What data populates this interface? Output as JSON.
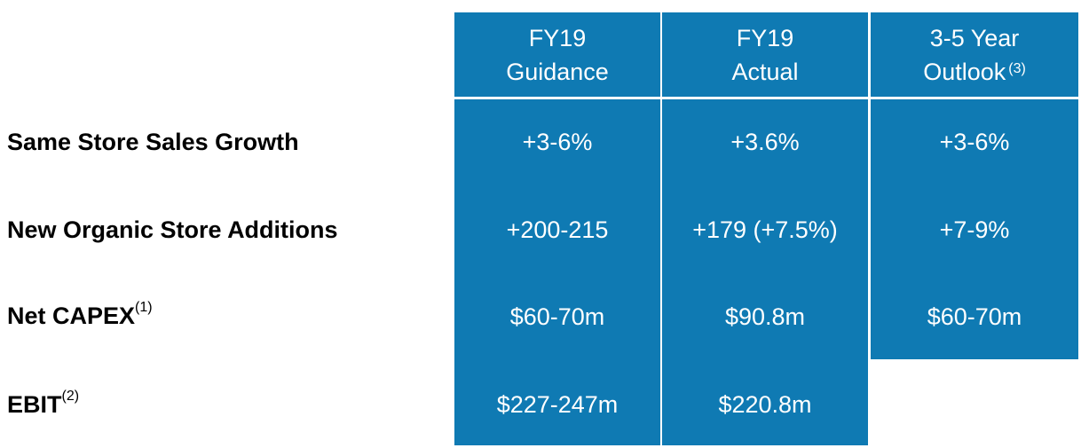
{
  "rows": [
    {
      "label": "Same Store Sales Growth",
      "sup": ""
    },
    {
      "label": "New Organic Store Additions",
      "sup": ""
    },
    {
      "label": "Net CAPEX",
      "sup": "(1)"
    },
    {
      "label": "EBIT",
      "sup": "(2)"
    }
  ],
  "columns": [
    {
      "header_line1": "FY19",
      "header_line2": "Guidance",
      "header_sup": "",
      "values": [
        "+3-6%",
        "+200-215",
        "$60-70m",
        "$227-247m"
      ]
    },
    {
      "header_line1": "FY19",
      "header_line2": "Actual",
      "header_sup": "",
      "values": [
        "+3.6%",
        "+179 (+7.5%)",
        "$90.8m",
        "$220.8m"
      ]
    },
    {
      "header_line1": "3-5 Year",
      "header_line2": "Outlook",
      "header_sup": "(3)",
      "values": [
        "+3-6%",
        "+7-9%",
        "$60-70m"
      ]
    }
  ],
  "colors": {
    "accent": "#0f7ab3",
    "text_on_accent": "#ffffff",
    "label_text": "#000000"
  }
}
